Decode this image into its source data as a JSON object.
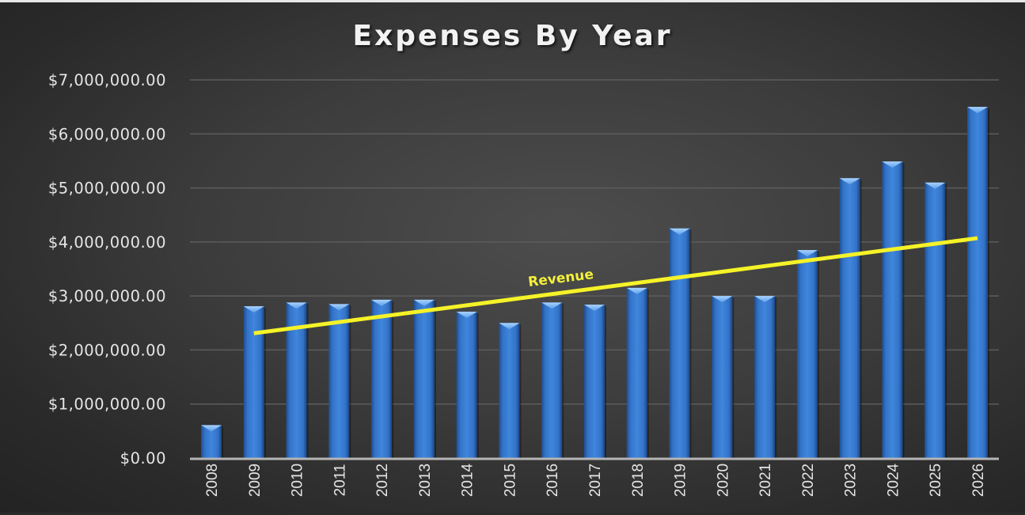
{
  "chart_data": {
    "type": "bar",
    "title": "Expenses By Year",
    "xlabel": "",
    "ylabel": "",
    "ylim": [
      0,
      7000000
    ],
    "grid": true,
    "legend": null,
    "y_ticks": [
      "$0.00",
      "$1,000,000.00",
      "$2,000,000.00",
      "$3,000,000.00",
      "$4,000,000.00",
      "$5,000,000.00",
      "$6,000,000.00",
      "$7,000,000.00"
    ],
    "categories": [
      "2008",
      "2009",
      "2010",
      "2011",
      "2012",
      "2013",
      "2014",
      "2015",
      "2016",
      "2017",
      "2018",
      "2019",
      "2020",
      "2021",
      "2022",
      "2023",
      "2024",
      "2025",
      "2026"
    ],
    "series": [
      {
        "name": "Expenses",
        "color": "#3a7bd5",
        "values": [
          610000,
          2810000,
          2880000,
          2850000,
          2930000,
          2930000,
          2710000,
          2500000,
          2880000,
          2840000,
          3150000,
          4250000,
          3000000,
          3000000,
          3850000,
          5180000,
          5490000,
          5100000,
          6500000
        ]
      }
    ],
    "trendline": {
      "name": "Revenue",
      "color": "#f5f228",
      "start": {
        "category": "2009",
        "value": 2310000
      },
      "end": {
        "category": "2026",
        "value": 4070000
      }
    },
    "annotations": [
      {
        "text": "Revenue",
        "near_category": "2016",
        "value": 3250000,
        "rotation_deg": -7,
        "color": "#f5f228"
      }
    ]
  },
  "colors": {
    "background": "#3a3a3a",
    "bar": "#3a7bd5",
    "bar_top": "#8cc0f5",
    "grid": "#5c5c5c",
    "axis": "#b5b5b5",
    "text": "#e6e6e6",
    "trend": "#f5f228"
  }
}
